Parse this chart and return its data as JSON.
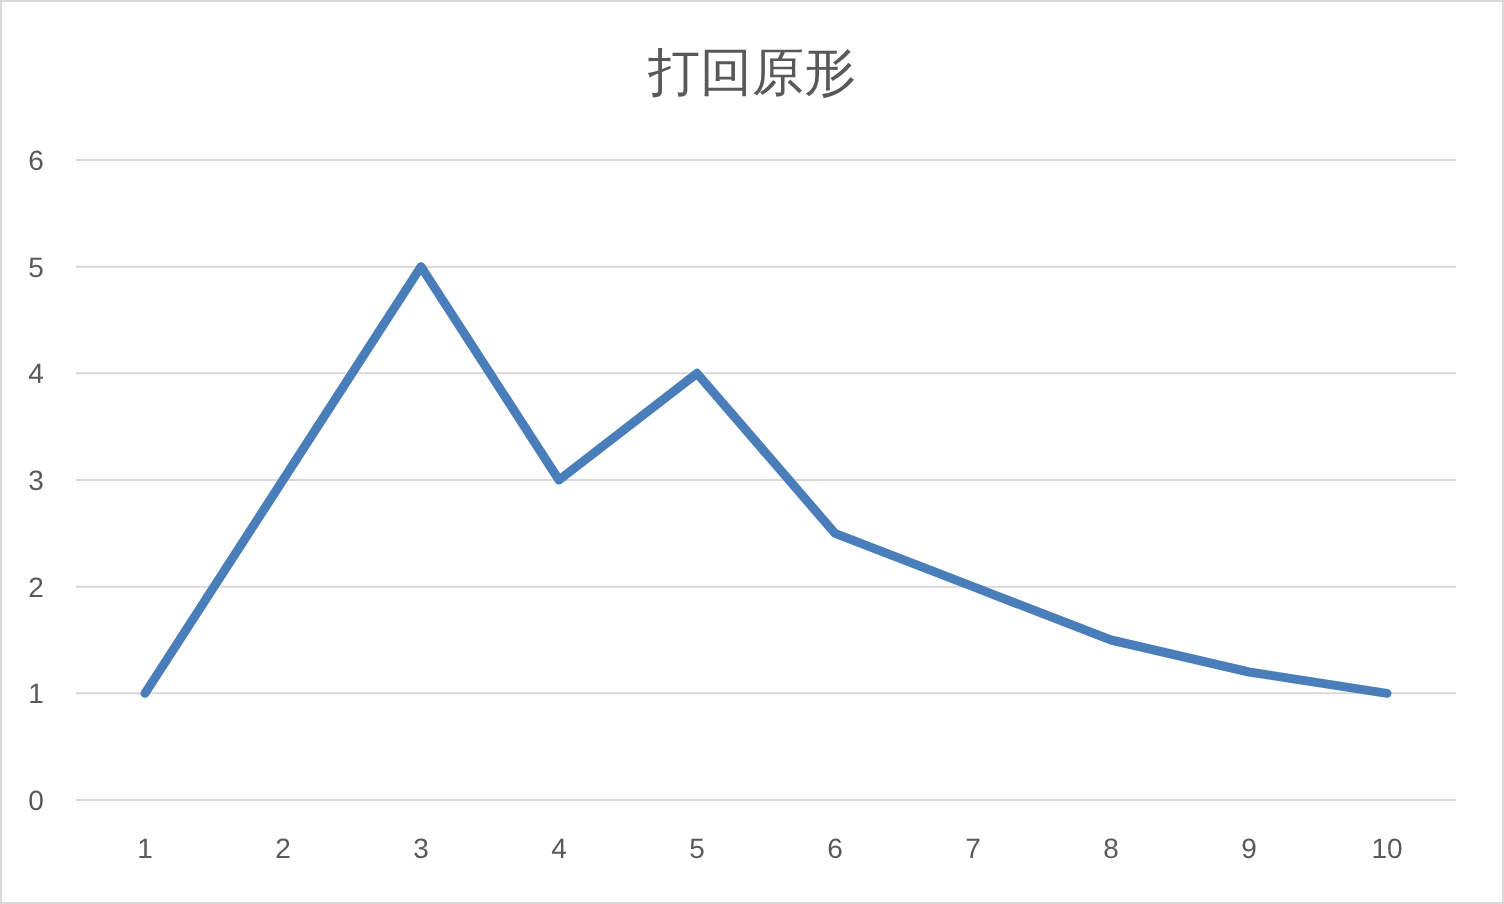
{
  "chart_data": {
    "type": "line",
    "title": "打回原形",
    "categories": [
      "1",
      "2",
      "3",
      "4",
      "5",
      "6",
      "7",
      "8",
      "9",
      "10"
    ],
    "series": [
      {
        "color": "#4a7ebb",
        "values": [
          1,
          3,
          5,
          3,
          4,
          2.5,
          2,
          1.5,
          1.2,
          1
        ]
      }
    ],
    "ylim": [
      0,
      6
    ],
    "yticks": [
      0,
      1,
      2,
      3,
      4,
      5,
      6
    ],
    "grid": "y"
  }
}
